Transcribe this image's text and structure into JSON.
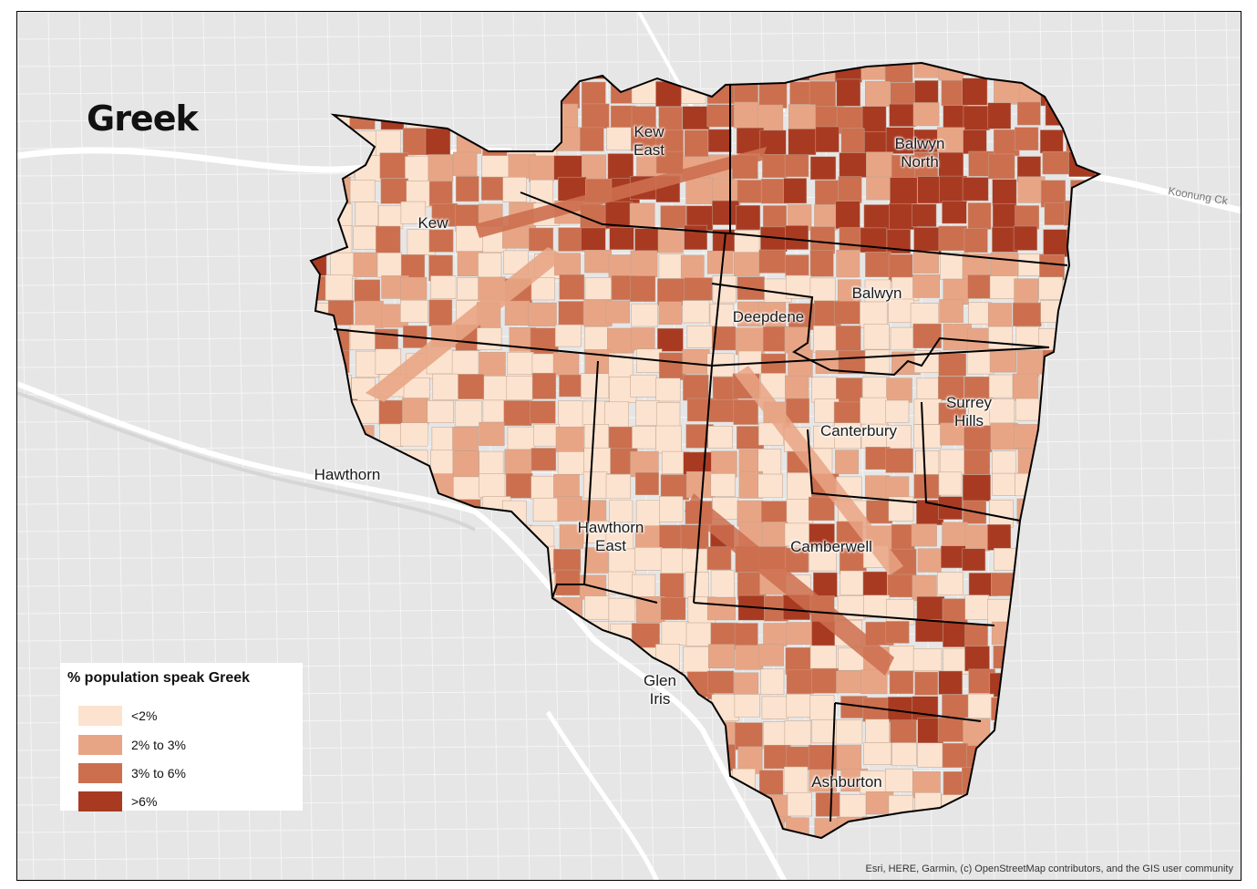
{
  "map": {
    "title": "Greek",
    "colors": {
      "background": "#e6e6e6",
      "road": "#ffffff",
      "river": "#d6d6d6",
      "boundary": "#000000"
    },
    "places": [
      {
        "name": "Kew",
        "lx": 475,
        "ly": 245
      },
      {
        "name": "Kew\nEast",
        "lx": 712,
        "ly": 155
      },
      {
        "name": "Balwyn\nNorth",
        "lx": 1009,
        "ly": 168
      },
      {
        "name": "Balwyn",
        "lx": 962,
        "ly": 322
      },
      {
        "name": "Deepdene",
        "lx": 843,
        "ly": 348
      },
      {
        "name": "Surrey\nHills",
        "lx": 1063,
        "ly": 452
      },
      {
        "name": "Canterbury",
        "lx": 942,
        "ly": 473
      },
      {
        "name": "Hawthorn",
        "lx": 381,
        "ly": 521
      },
      {
        "name": "Hawthorn\nEast",
        "lx": 670,
        "ly": 589
      },
      {
        "name": "Camberwell",
        "lx": 912,
        "ly": 600
      },
      {
        "name": "Glen\nIris",
        "lx": 724,
        "ly": 757
      },
      {
        "name": "Ashburton",
        "lx": 929,
        "ly": 858
      }
    ],
    "attribution": "Esri, HERE, Garmin, (c) OpenStreetMap contributors, and the GIS user community",
    "road_label": "Koonung Ck"
  },
  "legend": {
    "title": "% population speak Greek",
    "items": [
      {
        "label": "<2%",
        "color": "#fbe3cf"
      },
      {
        "label": "2% to 3%",
        "color": "#e8a585"
      },
      {
        "label": "3% to 6%",
        "color": "#cc6f4f"
      },
      {
        "label": ">6%",
        "color": "#a93a22"
      }
    ]
  }
}
